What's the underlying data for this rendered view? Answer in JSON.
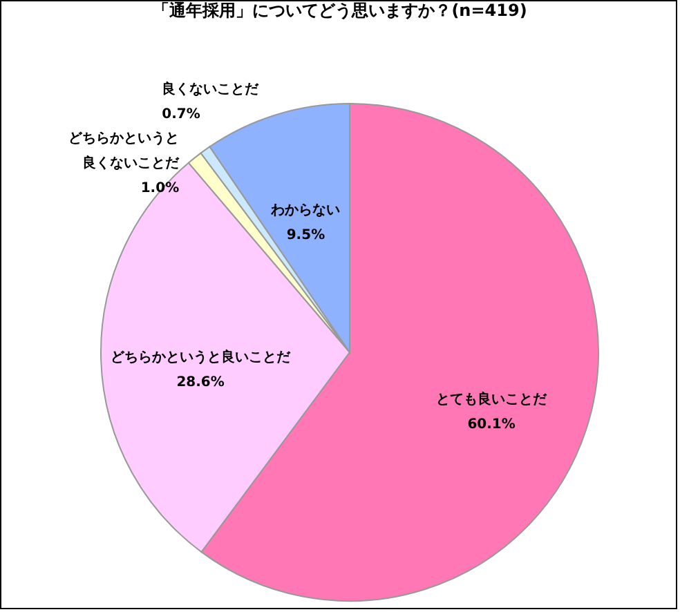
{
  "chart_data": {
    "type": "pie",
    "title": "「通年採用」についてどう思いますか？(n=419)",
    "categories": [
      "とても良いことだ",
      "どちらかというと良いことだ",
      "どちらかというと良くないことだ",
      "良くないことだ",
      "わからない"
    ],
    "values": [
      60.1,
      28.6,
      1.0,
      0.7,
      9.5
    ],
    "colors": [
      "#ff77b4",
      "#ffccff",
      "#ffffcc",
      "#cce8ff",
      "#8fb2ff"
    ],
    "value_labels": [
      "60.1%",
      "28.6%",
      "1.0%",
      "0.7%",
      "9.5%"
    ]
  }
}
